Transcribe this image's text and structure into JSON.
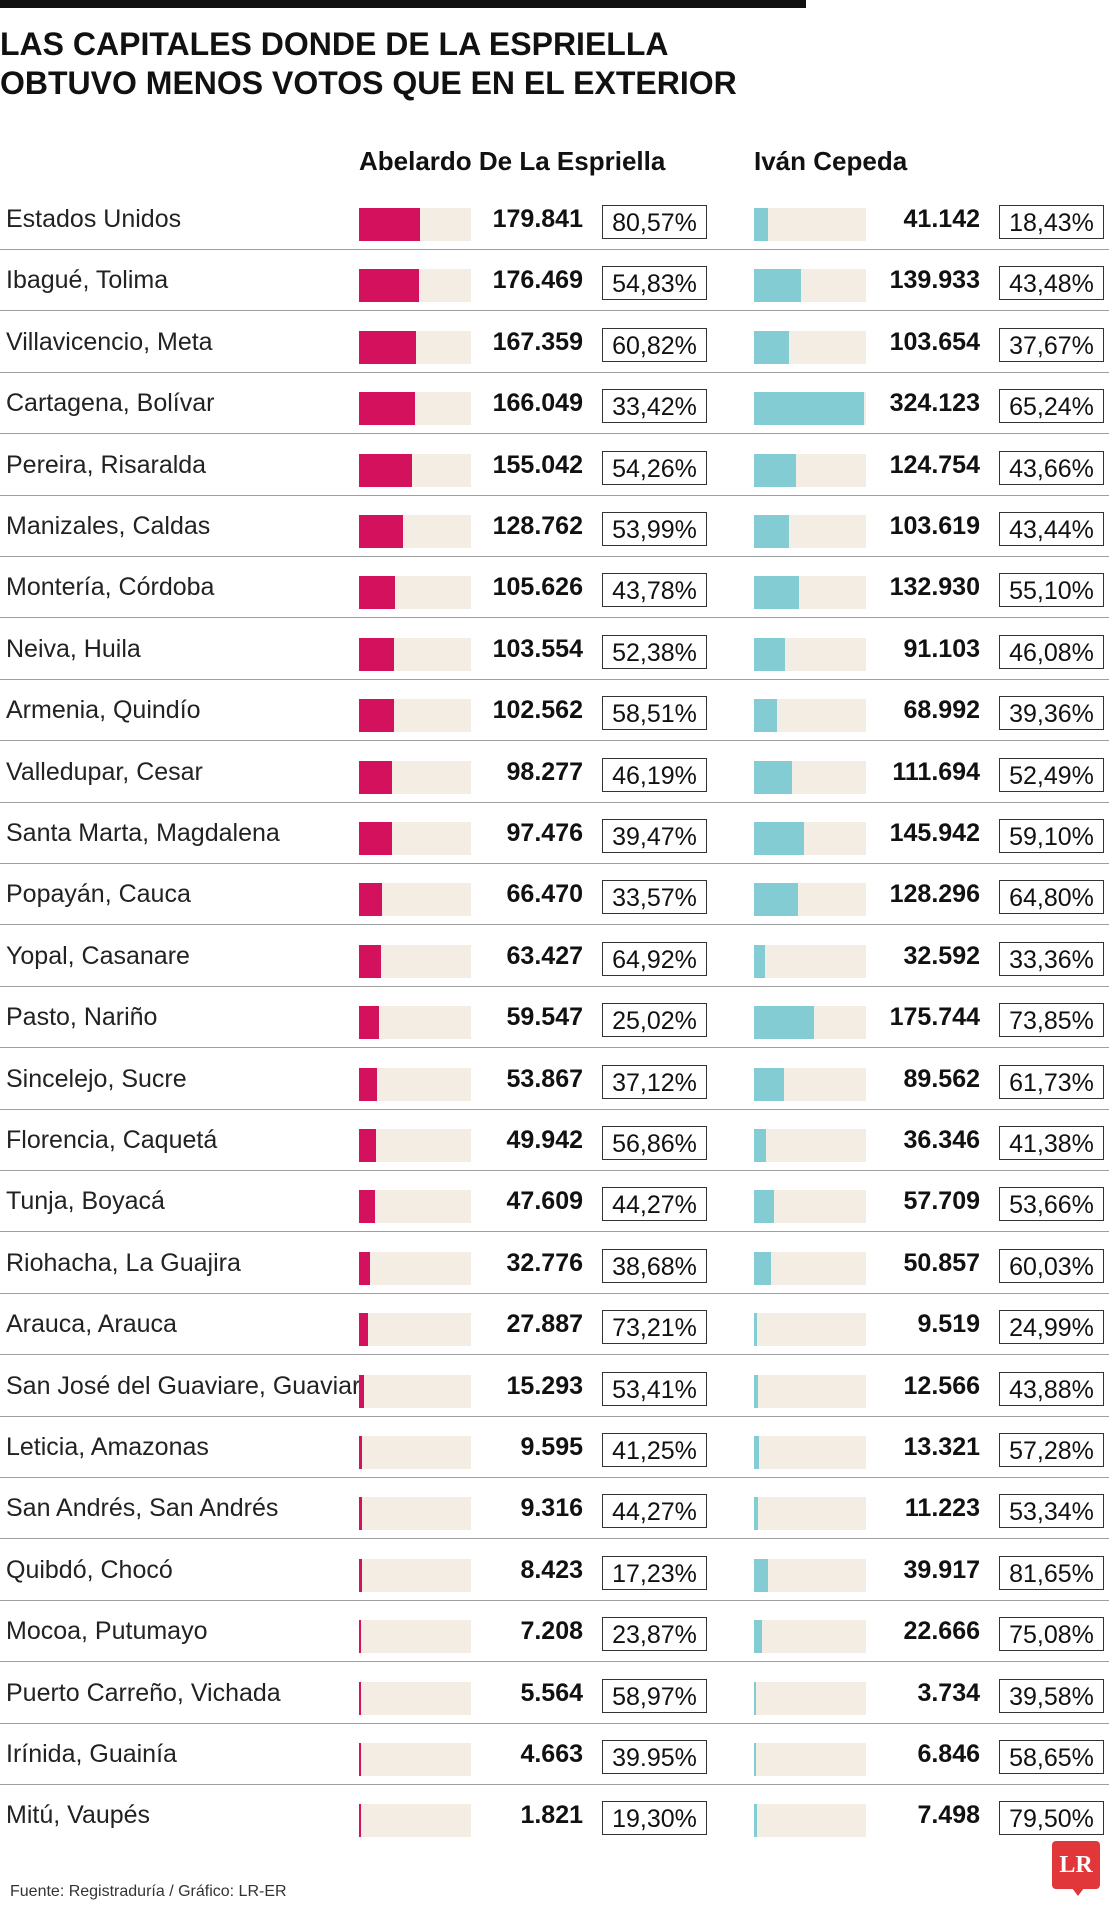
{
  "title_lines": [
    "LAS CAPITALES DONDE DE LA ESPRIELLA",
    "OBTUVO MENOS VOTOS QUE EN EL EXTERIOR"
  ],
  "source": "Fuente: Registraduría / Gráfico: LR-ER",
  "logo": "LR",
  "colors": {
    "espriella": "#d4115c",
    "cepeda": "#84ccd3",
    "track": "#f4ede4"
  },
  "chart_data": {
    "type": "bar",
    "series": [
      {
        "name": "Abelardo De La Espriella",
        "values": [
          179841,
          176469,
          167359,
          166049,
          155042,
          128762,
          105626,
          103554,
          102562,
          98277,
          97476,
          66470,
          63427,
          59547,
          53867,
          49942,
          47609,
          32776,
          27887,
          15293,
          9595,
          9316,
          8423,
          7208,
          5564,
          4663,
          1821
        ],
        "labels": [
          "179.841",
          "176.469",
          "167.359",
          "166.049",
          "155.042",
          "128.762",
          "105.626",
          "103.554",
          "102.562",
          "98.277",
          "97.476",
          "66.470",
          "63.427",
          "59.547",
          "53.867",
          "49.942",
          "47.609",
          "32.776",
          "27.887",
          "15.293",
          "9.595",
          "9.316",
          "8.423",
          "7.208",
          "5.564",
          "4.663",
          "1.821"
        ],
        "percents": [
          "80,57%",
          "54,83%",
          "60,82%",
          "33,42%",
          "54,26%",
          "53,99%",
          "43,78%",
          "52,38%",
          "58,51%",
          "46,19%",
          "39,47%",
          "33,57%",
          "64,92%",
          "25,02%",
          "37,12%",
          "56,86%",
          "44,27%",
          "38,68%",
          "73,21%",
          "53,41%",
          "41,25%",
          "44,27%",
          "17,23%",
          "23,87%",
          "58,97%",
          "39.95%",
          "19,30%"
        ]
      },
      {
        "name": "Iván Cepeda",
        "values": [
          41142,
          139933,
          103654,
          324123,
          124754,
          103619,
          132930,
          91103,
          68992,
          111694,
          145942,
          128296,
          32592,
          175744,
          89562,
          36346,
          57709,
          50857,
          9519,
          12566,
          13321,
          11223,
          39917,
          22666,
          3734,
          6846,
          7498
        ],
        "labels": [
          "41.142",
          "139.933",
          "103.654",
          "324.123",
          "124.754",
          "103.619",
          "132.930",
          "91.103",
          "68.992",
          "111.694",
          "145.942",
          "128.296",
          "32.592",
          "175.744",
          "89.562",
          "36.346",
          "57.709",
          "50.857",
          "9.519",
          "12.566",
          "13.321",
          "11.223",
          "39.917",
          "22.666",
          "3.734",
          "6.846",
          "7.498"
        ],
        "percents": [
          "18,43%",
          "43,48%",
          "37,67%",
          "65,24%",
          "43,66%",
          "43,44%",
          "55,10%",
          "46,08%",
          "39,36%",
          "52,49%",
          "59,10%",
          "64,80%",
          "33,36%",
          "73,85%",
          "61,73%",
          "41,38%",
          "53,66%",
          "60,03%",
          "24,99%",
          "43,88%",
          "57,28%",
          "53,34%",
          "81,65%",
          "75,08%",
          "39,58%",
          "58,65%",
          "79,50%"
        ]
      }
    ],
    "categories": [
      "Estados Unidos",
      "Ibagué, Tolima",
      "Villavicencio, Meta",
      "Cartagena, Bolívar",
      "Pereira, Risaralda",
      "Manizales, Caldas",
      "Montería, Córdoba",
      "Neiva, Huila",
      "Armenia, Quindío",
      "Valledupar, Cesar",
      "Santa Marta, Magdalena",
      "Popayán, Cauca",
      "Yopal, Casanare",
      "Pasto, Nariño",
      "Sincelejo, Sucre",
      "Florencia, Caquetá",
      "Tunja, Boyacá",
      "Riohacha, La Guajira",
      "Arauca, Arauca",
      "San José del Guaviare, Guaviare",
      "Leticia, Amazonas",
      "San Andrés, San Andrés",
      "Quibdó, Chocó",
      "Mocoa, Putumayo",
      "Puerto Carreño, Vichada",
      "Irínida, Guainía",
      "Mitú, Vaupés"
    ],
    "xlim": [
      0,
      330000
    ],
    "legend": "column headers"
  }
}
